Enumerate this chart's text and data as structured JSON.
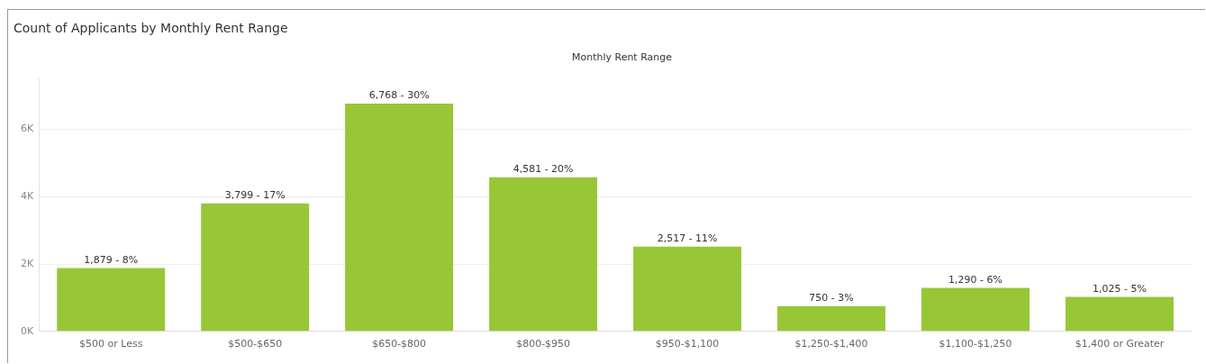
{
  "chart_data": {
    "type": "bar",
    "title": "Count of Applicants by Monthly Rent Range",
    "xlabel": "Monthly Rent Range",
    "categories": [
      "$500 or Less",
      "$500-$650",
      "$650-$800",
      "$800-$950",
      "$950-$1,100",
      "$1,250-$1,400",
      "$1,100-$1,250",
      "$1,400 or Greater"
    ],
    "values": [
      1879,
      3799,
      6768,
      4581,
      2517,
      750,
      1290,
      1025
    ],
    "value_labels": [
      "1,879 - 8%",
      "3,799 - 17%",
      "6,768 - 30%",
      "4,581 - 20%",
      "2,517 - 11%",
      "750 - 3%",
      "1,290 - 6%",
      "1,025 - 5%"
    ],
    "color": "#97c736",
    "ylim": [
      0,
      7500
    ],
    "yticks": [
      {
        "value": 0,
        "label": "0K"
      },
      {
        "value": 2000,
        "label": "2K"
      },
      {
        "value": 4000,
        "label": "4K"
      },
      {
        "value": 6000,
        "label": "6K"
      }
    ],
    "grid": "y"
  }
}
